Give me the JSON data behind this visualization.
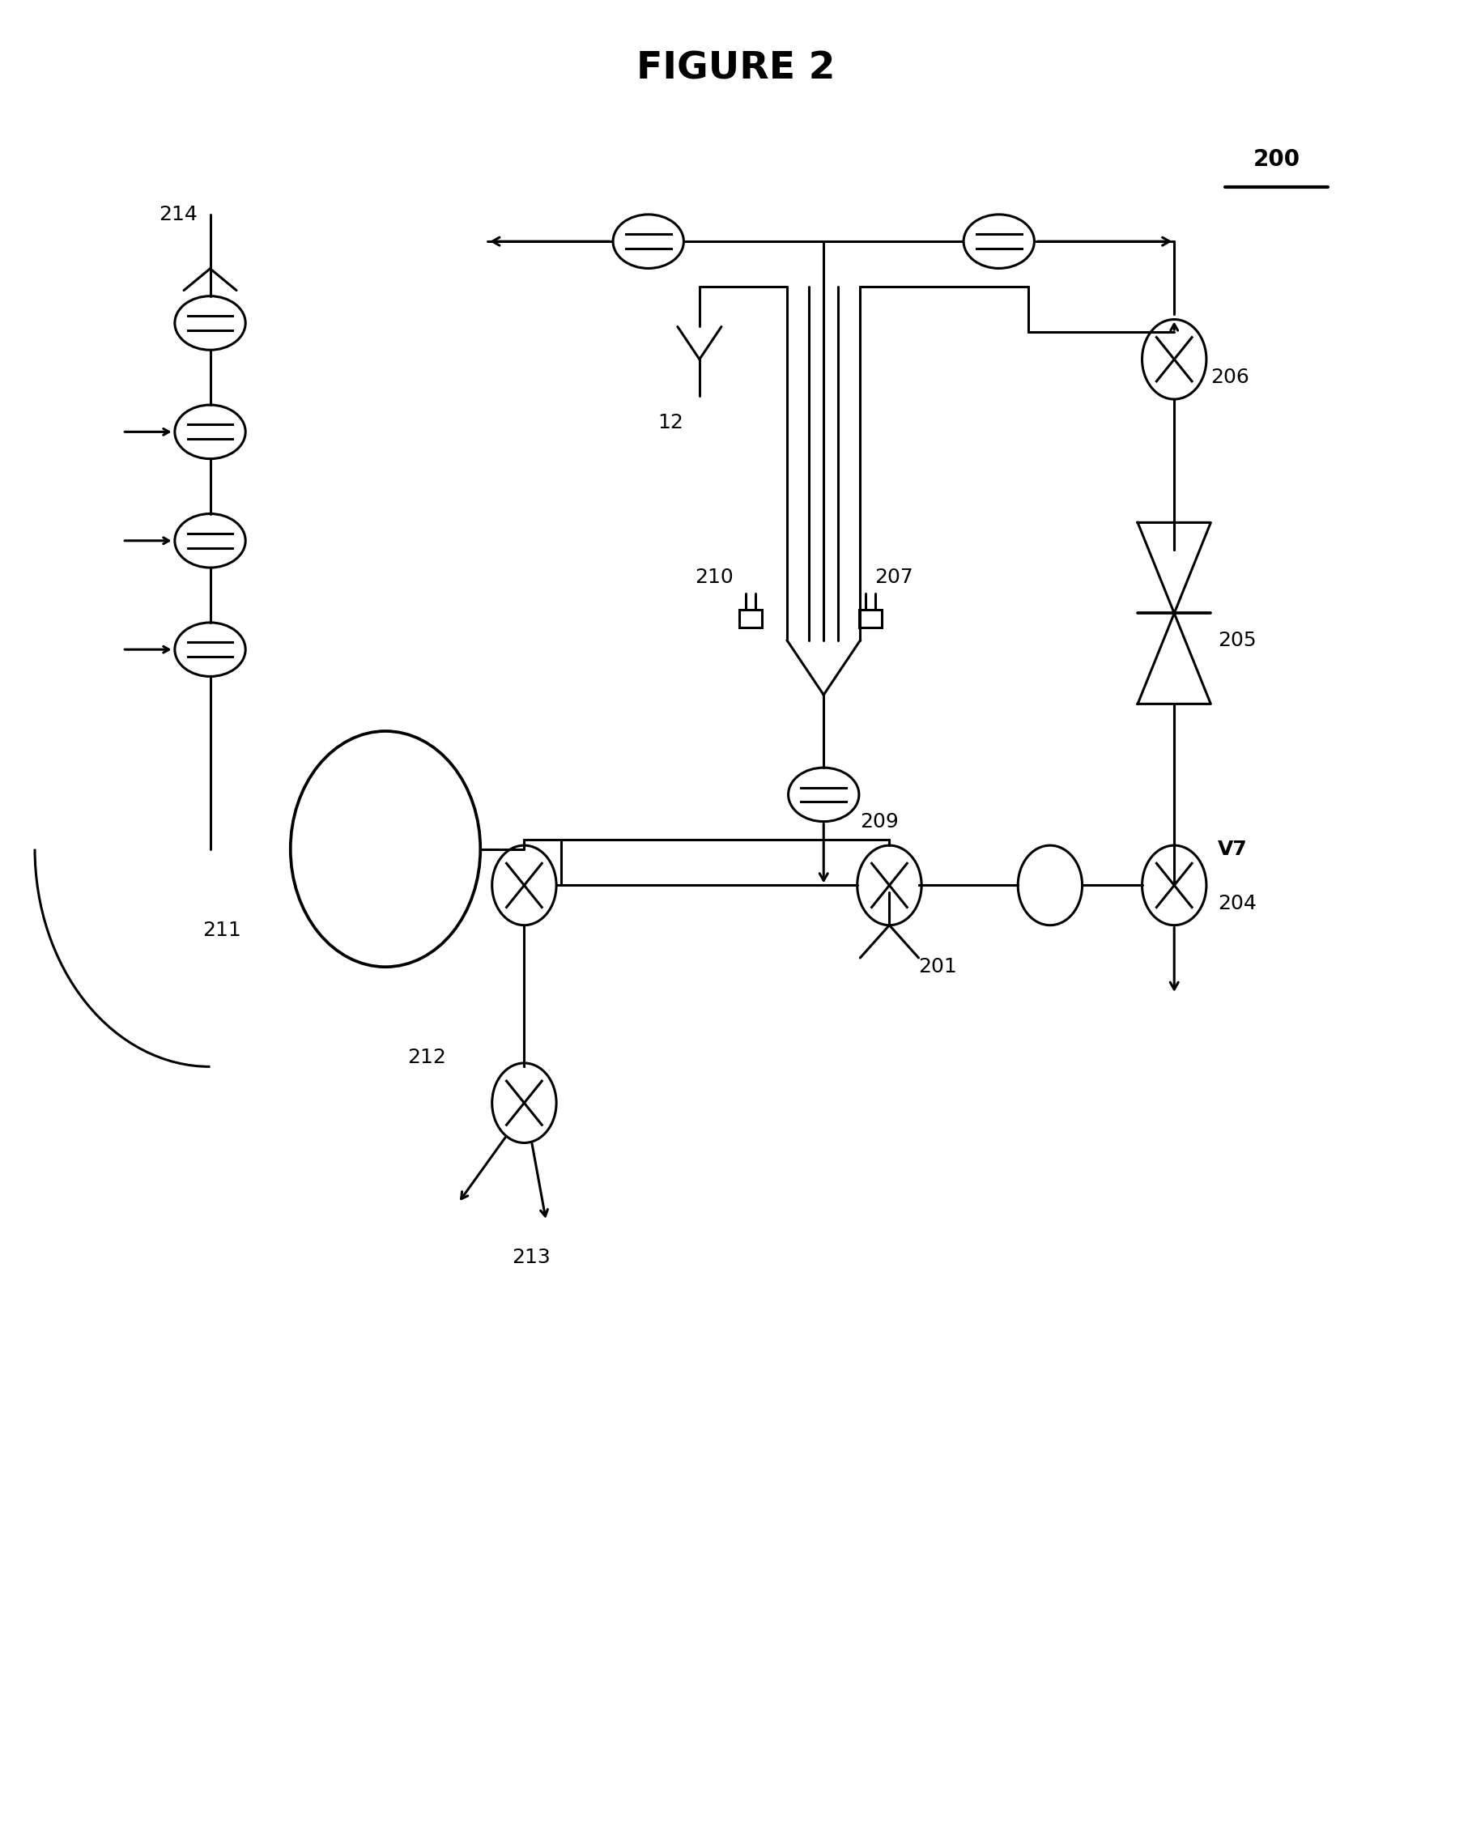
{
  "title": "FIGURE 2",
  "ref_number": "200",
  "background_color": "#ffffff",
  "line_color": "#000000",
  "lw": 2.2,
  "fig_width": 18.18,
  "fig_height": 22.54
}
